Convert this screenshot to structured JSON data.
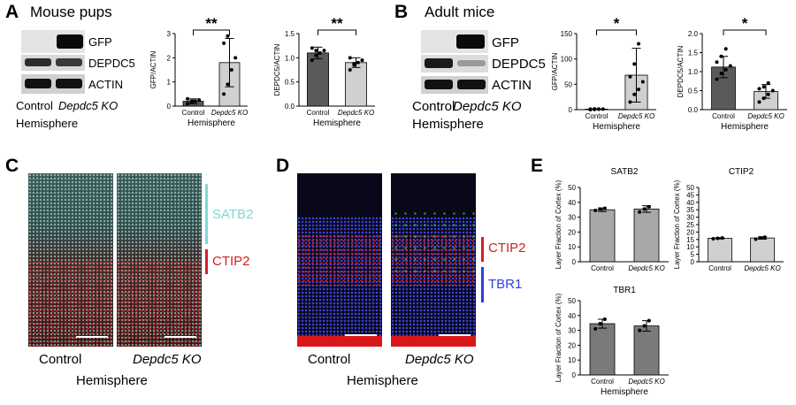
{
  "panels": {
    "A": {
      "letter": "A",
      "title": "Mouse pups",
      "blot_labels": [
        "GFP",
        "DEPDC5",
        "ACTIN"
      ],
      "lanes": [
        "Control",
        "Depdc5 KO"
      ],
      "hemisphere": "Hemisphere"
    },
    "B": {
      "letter": "B",
      "title": "Adult mice",
      "blot_labels": [
        "GFP",
        "DEPDC5",
        "ACTIN"
      ],
      "lanes": [
        "Control",
        "Depdc5 KO"
      ],
      "hemisphere": "Hemisphere"
    },
    "C": {
      "letter": "C",
      "markers": [
        {
          "label": "SATB2",
          "color": "#7fd8d8"
        },
        {
          "label": "CTIP2",
          "color": "#d42020"
        }
      ],
      "conditions": [
        "Control",
        "Depdc5 KO"
      ],
      "hemisphere": "Hemisphere"
    },
    "D": {
      "letter": "D",
      "markers": [
        {
          "label": "CTIP2",
          "color": "#d42020"
        },
        {
          "label": "TBR1",
          "color": "#2a3fd8"
        }
      ],
      "conditions": [
        "Control",
        "Depdc5 KO"
      ],
      "hemisphere": "Hemisphere"
    },
    "E": {
      "letter": "E"
    }
  },
  "chart_data": [
    {
      "id": "A-gfp",
      "type": "bar",
      "categories": [
        "Control",
        "Depdc5 KO"
      ],
      "values": [
        0.2,
        1.8
      ],
      "errors": [
        0.1,
        1.0
      ],
      "points": [
        [
          0.1,
          0.15,
          0.2,
          0.25,
          0.3,
          0.2
        ],
        [
          0.5,
          0.9,
          1.5,
          2.0,
          2.6,
          2.9
        ]
      ],
      "colors": [
        "#5a5a5a",
        "#d0d0d0"
      ],
      "ylabel": "GFP/ACTIN",
      "xlabel": "Hemisphere",
      "ylim": [
        0,
        3
      ],
      "yticks": [
        "0",
        "1",
        "2",
        "3"
      ],
      "yticklabels": [
        "0",
        "1",
        "2",
        "3"
      ],
      "significance": "**"
    },
    {
      "id": "A-depdc5",
      "type": "bar",
      "categories": [
        "Control",
        "Depdc5 KO"
      ],
      "values": [
        1.1,
        0.9
      ],
      "errors": [
        0.12,
        0.1
      ],
      "points": [
        [
          0.95,
          1.05,
          1.1,
          1.15,
          1.2,
          1.15
        ],
        [
          0.75,
          0.85,
          0.9,
          0.95,
          1.0,
          0.88
        ]
      ],
      "colors": [
        "#5a5a5a",
        "#d0d0d0"
      ],
      "ylabel": "DEPDC5/ACTIN",
      "xlabel": "Hemisphere",
      "ylim": [
        0,
        1.5
      ],
      "yticks": [
        "0.0",
        "0.5",
        "1.0",
        "1.5"
      ],
      "yticklabels": [
        "0.0",
        "0.5",
        "1.0",
        "1.5"
      ],
      "significance": "**"
    },
    {
      "id": "B-gfp",
      "type": "bar",
      "categories": [
        "Control",
        "Depdc5 KO"
      ],
      "values": [
        1,
        68
      ],
      "errors": [
        0.5,
        53
      ],
      "points": [
        [
          0,
          0.5,
          1,
          1,
          1,
          1.5,
          1
        ],
        [
          15,
          30,
          40,
          55,
          65,
          90,
          130
        ]
      ],
      "colors": [
        "#5a5a5a",
        "#d0d0d0"
      ],
      "ylabel": "GFP/ACTIN",
      "xlabel": "Hemisphere",
      "ylim": [
        0,
        150
      ],
      "yticks": [
        "0",
        "50",
        "100",
        "150"
      ],
      "yticklabels": [
        "0",
        "50",
        "100",
        "150"
      ],
      "significance": "*"
    },
    {
      "id": "B-depdc5",
      "type": "bar",
      "categories": [
        "Control",
        "Depdc5 KO"
      ],
      "values": [
        1.12,
        0.48
      ],
      "errors": [
        0.28,
        0.18
      ],
      "points": [
        [
          0.8,
          0.95,
          1.05,
          1.15,
          1.25,
          1.4,
          1.6
        ],
        [
          0.2,
          0.3,
          0.4,
          0.5,
          0.55,
          0.6,
          0.7
        ]
      ],
      "colors": [
        "#5a5a5a",
        "#d0d0d0"
      ],
      "ylabel": "DEPDC5/ACTIN",
      "xlabel": "Hemisphere",
      "ylim": [
        0,
        2.0
      ],
      "yticks": [
        "0.0",
        "0.5",
        "1.0",
        "1.5",
        "2.0"
      ],
      "yticklabels": [
        "0.0",
        "0.5",
        "1.0",
        "1.5",
        "2.0"
      ],
      "significance": "*"
    },
    {
      "id": "E-satb2",
      "type": "bar",
      "title": "SATB2",
      "categories": [
        "Control",
        "Depdc5 KO"
      ],
      "values": [
        35,
        35.5
      ],
      "errors": [
        1.2,
        2.2
      ],
      "points": [
        [
          34.5,
          35.5,
          36
        ],
        [
          33.5,
          35.5,
          37
        ]
      ],
      "colors": [
        "#a8a8a8",
        "#a8a8a8"
      ],
      "ylabel": "Layer Fraction of Cortex (%)",
      "xlabel": "",
      "ylim": [
        0,
        50
      ],
      "yticks": [
        "0",
        "10",
        "20",
        "30",
        "40",
        "50"
      ],
      "yticklabels": [
        "0",
        "10",
        "20",
        "30",
        "40",
        "50"
      ]
    },
    {
      "id": "E-ctip2",
      "type": "bar",
      "title": "CTIP2",
      "categories": [
        "Control",
        "Depdc5 KO"
      ],
      "values": [
        15.8,
        16
      ],
      "errors": [
        0.4,
        0.8
      ],
      "points": [
        [
          15.5,
          15.8,
          16
        ],
        [
          15.2,
          16,
          16.5
        ]
      ],
      "colors": [
        "#d0d0d0",
        "#d0d0d0"
      ],
      "ylabel": "Layer Fraction of Cortex (%)",
      "xlabel": "",
      "ylim": [
        0,
        50
      ],
      "yticks": [
        "0",
        "5",
        "10",
        "15",
        "20",
        "25",
        "30",
        "35",
        "40",
        "45",
        "50"
      ],
      "yticklabels": [
        "0",
        "5",
        "10",
        "15",
        "20",
        "25",
        "30",
        "35",
        "40",
        "45",
        "50"
      ]
    },
    {
      "id": "E-tbr1",
      "type": "bar",
      "title": "TBR1",
      "categories": [
        "Control",
        "Depdc5 KO"
      ],
      "values": [
        34.5,
        33
      ],
      "errors": [
        3,
        3.5
      ],
      "points": [
        [
          31,
          34.5,
          37.5
        ],
        [
          30,
          33,
          36.5
        ]
      ],
      "colors": [
        "#7a7a7a",
        "#7a7a7a"
      ],
      "ylabel": "Layer Fraction of Cortex (%)",
      "xlabel": "Hemisphere",
      "ylim": [
        0,
        50
      ],
      "yticks": [
        "0",
        "10",
        "20",
        "30",
        "40",
        "50"
      ],
      "yticklabels": [
        "0",
        "10",
        "20",
        "30",
        "40",
        "50"
      ]
    }
  ]
}
